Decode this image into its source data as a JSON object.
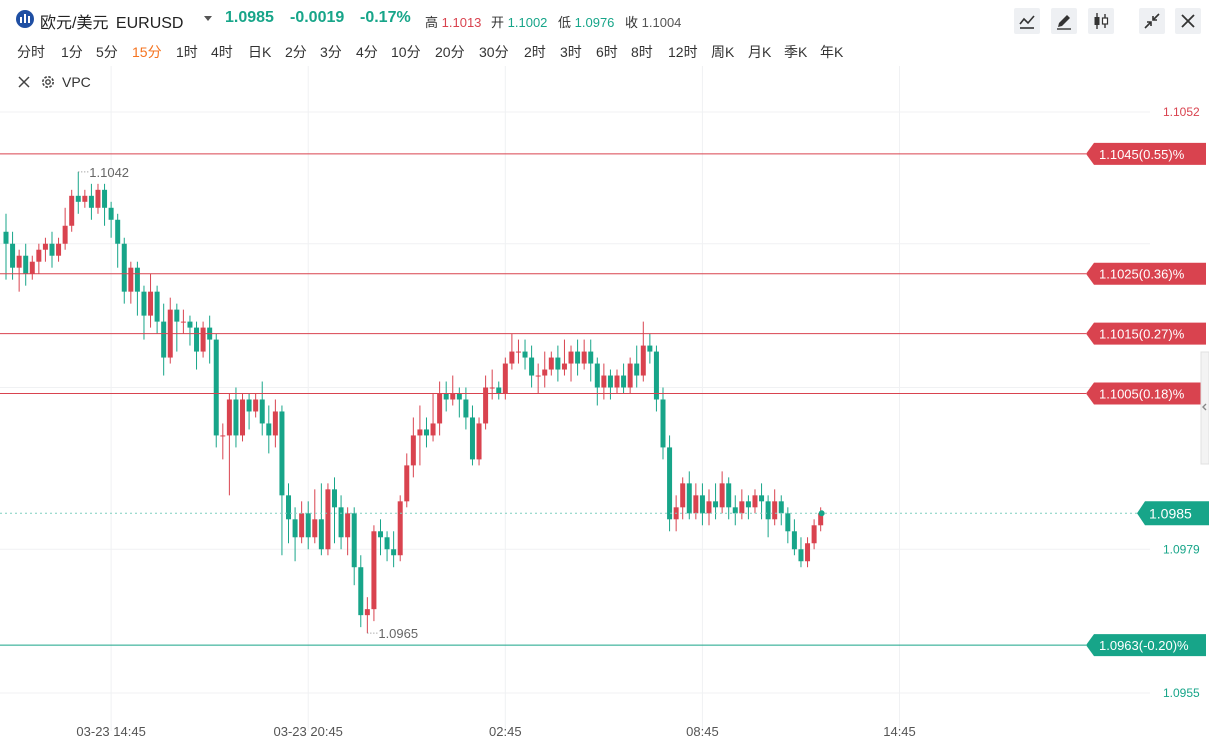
{
  "header": {
    "symbol_name": "欧元/美元",
    "symbol_code": "EURUSD",
    "price": "1.0985",
    "change": "-0.0019",
    "change_pct": "-0.17%",
    "high_label": "高",
    "high": "1.1013",
    "open_label": "开",
    "open": "1.1002",
    "low_label": "低",
    "low": "1.0976",
    "close_label": "收",
    "close": "1.1004",
    "tools": [
      "line-tool-icon",
      "pen-icon",
      "candlestick-icon",
      "collapse-icon",
      "close-icon"
    ]
  },
  "periods": [
    "分时",
    "1分",
    "5分",
    "15分",
    "1时",
    "4时",
    "日K",
    "2分",
    "3分",
    "4分",
    "10分",
    "20分",
    "30分",
    "2时",
    "3时",
    "6时",
    "8时",
    "12时",
    "周K",
    "月K",
    "季K",
    "年K"
  ],
  "active_period": "15分",
  "indicator": {
    "name": "VPC"
  },
  "colors": {
    "up": "#d9434f",
    "down": "#17a589",
    "accent": "#f5731f",
    "grid": "#f0f1f3"
  },
  "chart_data": {
    "type": "candlestick",
    "symbol": "EURUSD",
    "interval": "15分",
    "y_range": [
      1.0952,
      1.1058
    ],
    "y_ticks": [
      "1.1052",
      "1.0979",
      "1.0955"
    ],
    "x_ticks": [
      "03-23 14:45",
      "03-23 20:45",
      "02:45",
      "08:45",
      "14:45"
    ],
    "last_price": 1.0985,
    "last_price_label": "1.0985",
    "max_marker": 1.1042,
    "max_label": "1.1042",
    "min_marker": 1.0965,
    "min_label": "1.0965",
    "price_lines": [
      {
        "value": 1.1045,
        "label": "1.1045(0.55)%",
        "color": "#d9434f"
      },
      {
        "value": 1.1025,
        "label": "1.1025(0.36)%",
        "color": "#d9434f"
      },
      {
        "value": 1.1015,
        "label": "1.1015(0.27)%",
        "color": "#d9434f"
      },
      {
        "value": 1.1005,
        "label": "1.1005(0.18)%",
        "color": "#d9434f"
      },
      {
        "value": 1.0963,
        "label": "1.0963(-0.20)%",
        "color": "#17a589"
      }
    ],
    "candles": [
      [
        1.1032,
        1.103,
        1.1035,
        1.1024
      ],
      [
        1.103,
        1.1026,
        1.1032,
        1.1024
      ],
      [
        1.1026,
        1.1028,
        1.1029,
        1.1022
      ],
      [
        1.1028,
        1.1025,
        1.103,
        1.1023
      ],
      [
        1.1025,
        1.1027,
        1.1028,
        1.1024
      ],
      [
        1.1027,
        1.1029,
        1.103,
        1.1025
      ],
      [
        1.1029,
        1.103,
        1.1031,
        1.1027
      ],
      [
        1.103,
        1.1028,
        1.1032,
        1.1026
      ],
      [
        1.1028,
        1.103,
        1.1031,
        1.1027
      ],
      [
        1.103,
        1.1033,
        1.1036,
        1.1029
      ],
      [
        1.1033,
        1.1038,
        1.1039,
        1.1032
      ],
      [
        1.1038,
        1.1037,
        1.1042,
        1.1035
      ],
      [
        1.1037,
        1.1038,
        1.1039,
        1.1036
      ],
      [
        1.1038,
        1.1036,
        1.104,
        1.1034
      ],
      [
        1.1036,
        1.1039,
        1.104,
        1.1035
      ],
      [
        1.1039,
        1.1036,
        1.104,
        1.1033
      ],
      [
        1.1036,
        1.1034,
        1.1037,
        1.1031
      ],
      [
        1.1034,
        1.103,
        1.1035,
        1.1026
      ],
      [
        1.103,
        1.1022,
        1.1031,
        1.102
      ],
      [
        1.1022,
        1.1026,
        1.1027,
        1.102
      ],
      [
        1.1026,
        1.1022,
        1.1027,
        1.1018
      ],
      [
        1.1022,
        1.1018,
        1.1023,
        1.1014
      ],
      [
        1.1018,
        1.1022,
        1.1025,
        1.1016
      ],
      [
        1.1022,
        1.1017,
        1.1023,
        1.1015
      ],
      [
        1.1017,
        1.1011,
        1.102,
        1.1008
      ],
      [
        1.1011,
        1.1019,
        1.1021,
        1.101
      ],
      [
        1.1019,
        1.1017,
        1.102,
        1.1012
      ],
      [
        1.1017,
        1.1017,
        1.1019,
        1.1015
      ],
      [
        1.1017,
        1.1016,
        1.1018,
        1.1013
      ],
      [
        1.1016,
        1.1012,
        1.1017,
        1.1009
      ],
      [
        1.1012,
        1.1016,
        1.1017,
        1.1011
      ],
      [
        1.1016,
        1.1014,
        1.1018,
        1.101
      ],
      [
        1.1014,
        1.0998,
        1.1015,
        1.0996
      ],
      [
        1.0998,
        1.0998,
        1.1,
        1.0994
      ],
      [
        1.0998,
        1.1004,
        1.1005,
        1.0988
      ],
      [
        1.1004,
        1.0998,
        1.1006,
        1.0996
      ],
      [
        1.0998,
        1.1004,
        1.1005,
        1.0997
      ],
      [
        1.1004,
        1.1002,
        1.1005,
        1.0999
      ],
      [
        1.1002,
        1.1004,
        1.1005,
        1.1001
      ],
      [
        1.1004,
        1.1,
        1.1007,
        1.0998
      ],
      [
        1.1,
        1.0998,
        1.1003,
        1.0995
      ],
      [
        1.0998,
        1.1002,
        1.1004,
        1.0996
      ],
      [
        1.1002,
        1.0988,
        1.1003,
        1.0978
      ],
      [
        1.0988,
        1.0984,
        1.099,
        1.098
      ],
      [
        1.0984,
        1.0981,
        1.0986,
        1.0977
      ],
      [
        1.0981,
        1.0985,
        1.0987,
        1.098
      ],
      [
        1.0985,
        1.0981,
        1.0987,
        1.0979
      ],
      [
        1.0981,
        1.0984,
        1.0989,
        1.098
      ],
      [
        1.0984,
        1.0979,
        1.099,
        1.0978
      ],
      [
        1.0979,
        1.0989,
        1.099,
        1.0978
      ],
      [
        1.0989,
        1.0986,
        1.0991,
        1.098
      ],
      [
        1.0986,
        1.0981,
        1.0988,
        1.0979
      ],
      [
        1.0981,
        1.0985,
        1.0986,
        1.0978
      ],
      [
        1.0985,
        1.0976,
        1.0986,
        1.0973
      ],
      [
        1.0976,
        1.0968,
        1.0978,
        1.0966
      ],
      [
        1.0968,
        1.0969,
        1.0971,
        1.0965
      ],
      [
        1.0969,
        1.0982,
        1.0983,
        1.0967
      ],
      [
        1.0982,
        1.0981,
        1.0984,
        1.0978
      ],
      [
        1.0981,
        1.0979,
        1.0982,
        1.0977
      ],
      [
        1.0979,
        1.0978,
        1.0982,
        1.0976
      ],
      [
        1.0978,
        1.0987,
        1.0988,
        1.0977
      ],
      [
        1.0987,
        1.0993,
        1.0995,
        1.0986
      ],
      [
        1.0993,
        1.0998,
        1.1001,
        1.0991
      ],
      [
        1.0998,
        1.0999,
        1.1003,
        1.0993
      ],
      [
        1.0999,
        1.0998,
        1.1001,
        1.0996
      ],
      [
        1.0998,
        1.1,
        1.1005,
        1.0997
      ],
      [
        1.1,
        1.1005,
        1.1007,
        1.0998
      ],
      [
        1.1005,
        1.1004,
        1.1007,
        1.1002
      ],
      [
        1.1004,
        1.1005,
        1.1008,
        1.1003
      ],
      [
        1.1005,
        1.1004,
        1.1006,
        1.1001
      ],
      [
        1.1004,
        1.1001,
        1.1006,
        1.0999
      ],
      [
        1.1001,
        1.0994,
        1.1003,
        1.0993
      ],
      [
        1.0994,
        1.1,
        1.1001,
        1.0993
      ],
      [
        1.1,
        1.1006,
        1.1008,
        1.0999
      ],
      [
        1.1006,
        1.1006,
        1.1009,
        1.1004
      ],
      [
        1.1006,
        1.1005,
        1.1007,
        1.1004
      ],
      [
        1.1005,
        1.101,
        1.1011,
        1.1004
      ],
      [
        1.101,
        1.1012,
        1.1015,
        1.1009
      ],
      [
        1.1012,
        1.1012,
        1.1014,
        1.101
      ],
      [
        1.1012,
        1.1011,
        1.1014,
        1.1009
      ],
      [
        1.1011,
        1.1008,
        1.1013,
        1.1006
      ],
      [
        1.1008,
        1.1008,
        1.101,
        1.1005
      ],
      [
        1.1008,
        1.1009,
        1.1012,
        1.1006
      ],
      [
        1.1009,
        1.1011,
        1.1012,
        1.1008
      ],
      [
        1.1011,
        1.1009,
        1.1013,
        1.1007
      ],
      [
        1.1009,
        1.101,
        1.1014,
        1.1008
      ],
      [
        1.101,
        1.1012,
        1.1013,
        1.1007
      ],
      [
        1.1012,
        1.101,
        1.1014,
        1.1008
      ],
      [
        1.101,
        1.1012,
        1.1014,
        1.1009
      ],
      [
        1.1012,
        1.101,
        1.1014,
        1.1007
      ],
      [
        1.101,
        1.1006,
        1.1011,
        1.1003
      ],
      [
        1.1006,
        1.1008,
        1.101,
        1.1004
      ],
      [
        1.1008,
        1.1006,
        1.1009,
        1.1004
      ],
      [
        1.1006,
        1.1008,
        1.1009,
        1.1005
      ],
      [
        1.1008,
        1.1006,
        1.101,
        1.1005
      ],
      [
        1.1006,
        1.101,
        1.1011,
        1.1005
      ],
      [
        1.101,
        1.1008,
        1.1013,
        1.1006
      ],
      [
        1.1008,
        1.1013,
        1.1017,
        1.1007
      ],
      [
        1.1013,
        1.1012,
        1.1015,
        1.101
      ],
      [
        1.1012,
        1.1004,
        1.1013,
        1.1002
      ],
      [
        1.1004,
        1.0996,
        1.1006,
        1.0994
      ],
      [
        1.0996,
        1.0984,
        1.0998,
        1.0982
      ],
      [
        1.0984,
        1.0986,
        1.0988,
        1.0982
      ],
      [
        1.0986,
        1.099,
        1.0991,
        1.0984
      ],
      [
        1.099,
        1.0985,
        1.0992,
        1.0984
      ],
      [
        1.0985,
        1.0988,
        1.099,
        1.0984
      ],
      [
        1.0988,
        1.0985,
        1.099,
        1.0983
      ],
      [
        1.0985,
        1.0987,
        1.0989,
        1.0983
      ],
      [
        1.0987,
        1.0986,
        1.099,
        1.0984
      ],
      [
        1.0986,
        1.099,
        1.0992,
        1.0985
      ],
      [
        1.099,
        1.0986,
        1.0991,
        1.0984
      ],
      [
        1.0986,
        1.0985,
        1.0988,
        1.0983
      ],
      [
        1.0985,
        1.0987,
        1.0989,
        1.0984
      ],
      [
        1.0987,
        1.0986,
        1.0988,
        1.0984
      ],
      [
        1.0986,
        1.0988,
        1.0989,
        1.0985
      ],
      [
        1.0988,
        1.0987,
        1.099,
        1.0984
      ],
      [
        1.0987,
        1.0984,
        1.0988,
        1.0981
      ],
      [
        1.0984,
        1.0987,
        1.0989,
        1.0983
      ],
      [
        1.0987,
        1.0985,
        1.0988,
        1.0983
      ],
      [
        1.0985,
        1.0982,
        1.0986,
        1.098
      ],
      [
        1.0982,
        1.0979,
        1.0984,
        1.0978
      ],
      [
        1.0979,
        1.0977,
        1.0981,
        1.0976
      ],
      [
        1.0977,
        1.098,
        1.0981,
        1.0976
      ],
      [
        1.098,
        1.0983,
        1.0984,
        1.0979
      ],
      [
        1.0983,
        1.0985,
        1.0986,
        1.0982
      ]
    ]
  }
}
